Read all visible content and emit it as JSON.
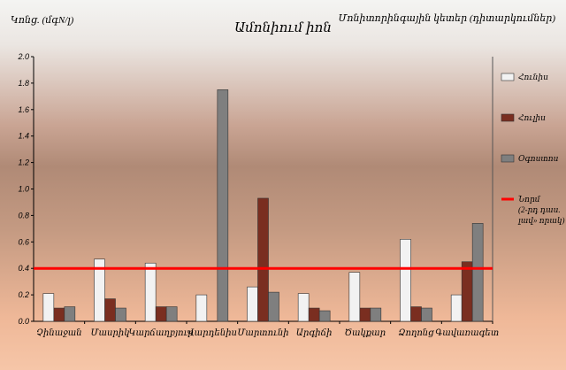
{
  "chart_data": {
    "type": "bar",
    "title": "Ամոնիում իոն",
    "ylabel": "Կոնց. (մգN/լ)",
    "xlabel": "",
    "legend_title": "Մոնիտորինգային կետեր (դիտարկումներ)",
    "ylim": [
      0,
      2.0
    ],
    "yticks": [
      "0.0",
      "0.2",
      "0.4",
      "0.6",
      "0.8",
      "1.0",
      "1.2",
      "1.4",
      "1.6",
      "1.8",
      "2.0"
    ],
    "grid": false,
    "legend_position": "right",
    "categories": [
      "Չինաջան",
      "Մասրիկ",
      "Կարճաղբյուր",
      "Վարդենիս",
      "Մարտունի",
      "Արգիճի",
      "Ծակքար",
      "Ձողոնց",
      "Գավառագետ"
    ],
    "series": [
      {
        "name": "Հունիս",
        "color": "#f2f2f2",
        "values": [
          0.21,
          0.47,
          0.44,
          0.2,
          0.26,
          0.21,
          0.37,
          0.62,
          0.2
        ]
      },
      {
        "name": "Հուլիս",
        "color": "#7a2e20",
        "values": [
          0.1,
          0.17,
          0.11,
          0.0,
          0.93,
          0.1,
          0.1,
          0.11,
          0.45
        ]
      },
      {
        "name": "Օգոստոս",
        "color": "#7f7f7f",
        "values": [
          0.11,
          0.1,
          0.11,
          1.75,
          0.22,
          0.08,
          0.1,
          0.1,
          0.74
        ]
      }
    ],
    "reference_line": {
      "value": 0.4,
      "color": "#ff0000",
      "label_lines": [
        "Նորմ",
        "(2-րդ դաս.",
        "լավ» որակ)"
      ]
    }
  }
}
